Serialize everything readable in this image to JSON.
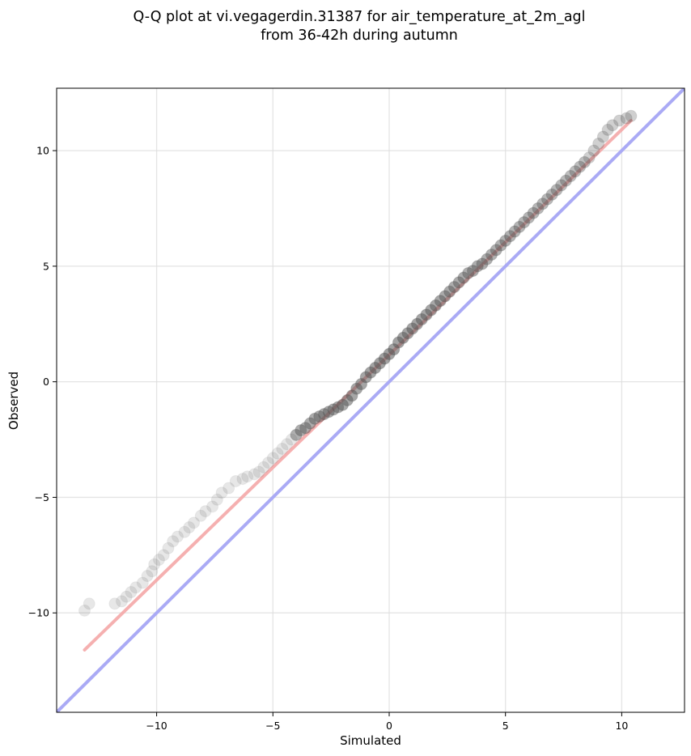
{
  "chart_data": {
    "type": "scatter",
    "title": "Q-Q plot at vi.vegagerdin.31387 for air_temperature_at_2m_agl",
    "subtitle": "from 36-42h during autumn",
    "xlabel": "Simulated",
    "ylabel": "Observed",
    "xlim": [
      -14.3,
      12.7
    ],
    "ylim": [
      -14.3,
      12.7
    ],
    "xticks": [
      -10,
      -5,
      0,
      5,
      10
    ],
    "yticks": [
      -10,
      -5,
      0,
      5,
      10
    ],
    "xtick_labels": [
      "−10",
      "−5",
      "0",
      "5",
      "10"
    ],
    "ytick_labels": [
      "−10",
      "−5",
      "0",
      "5",
      "10"
    ],
    "grid": true,
    "reference_line": {
      "x": [
        -14.3,
        12.7
      ],
      "y": [
        -14.3,
        12.7
      ],
      "color": "#aaaaf5"
    },
    "fit_line": {
      "x": [
        -13.1,
        10.4
      ],
      "y": [
        -11.6,
        11.3
      ],
      "color": "#f5a8a8"
    },
    "point_color": "#555555",
    "series": [
      {
        "x": [
          -13.1,
          -12.9,
          -11.8,
          -11.5,
          -11.3,
          -11.1,
          -10.9,
          -10.6,
          -10.4,
          -10.2,
          -10.1,
          -9.9,
          -9.7,
          -9.5,
          -9.3,
          -9.1,
          -8.8,
          -8.6,
          -8.4,
          -8.1,
          -7.9,
          -7.6,
          -7.4,
          -7.2,
          -6.9,
          -6.6,
          -6.3,
          -6.1,
          -5.8,
          -5.6,
          -5.4,
          -5.2,
          -5.0,
          -4.8,
          -4.6,
          -4.4,
          -4.2,
          -4.0,
          -3.8,
          -3.6,
          -3.4,
          -3.2,
          -3.0,
          -2.8,
          -2.6,
          -2.4,
          -2.2,
          -2.0,
          -1.8,
          -1.6,
          -1.4,
          -1.2,
          -1.0,
          -0.8,
          -0.6,
          -0.4,
          -0.2,
          0.0,
          0.2,
          0.4,
          0.6,
          0.8,
          1.0,
          1.2,
          1.4,
          1.6,
          1.8,
          2.0,
          2.2,
          2.4,
          2.6,
          2.8,
          3.0,
          3.2,
          3.4,
          3.6,
          3.8,
          4.0,
          4.2,
          4.4,
          4.6,
          4.8,
          5.0,
          5.2,
          5.4,
          5.6,
          5.8,
          6.0,
          6.2,
          6.4,
          6.6,
          6.8,
          7.0,
          7.2,
          7.4,
          7.6,
          7.8,
          8.0,
          8.2,
          8.4,
          8.6,
          8.8,
          9.0,
          9.2,
          9.4,
          9.6,
          9.9,
          10.2,
          10.4
        ],
        "y": [
          -9.9,
          -9.6,
          -9.6,
          -9.5,
          -9.3,
          -9.1,
          -8.9,
          -8.7,
          -8.4,
          -8.2,
          -7.9,
          -7.7,
          -7.5,
          -7.2,
          -6.9,
          -6.7,
          -6.5,
          -6.3,
          -6.1,
          -5.8,
          -5.6,
          -5.4,
          -5.1,
          -4.8,
          -4.6,
          -4.3,
          -4.2,
          -4.1,
          -4.0,
          -3.9,
          -3.7,
          -3.5,
          -3.3,
          -3.1,
          -2.9,
          -2.7,
          -2.5,
          -2.3,
          -2.1,
          -2.0,
          -1.8,
          -1.6,
          -1.5,
          -1.4,
          -1.3,
          -1.2,
          -1.1,
          -1.0,
          -0.8,
          -0.6,
          -0.3,
          -0.1,
          0.2,
          0.4,
          0.6,
          0.8,
          1.0,
          1.2,
          1.4,
          1.7,
          1.9,
          2.1,
          2.3,
          2.5,
          2.7,
          2.9,
          3.1,
          3.3,
          3.5,
          3.7,
          3.9,
          4.1,
          4.3,
          4.5,
          4.7,
          4.8,
          5.0,
          5.1,
          5.3,
          5.5,
          5.7,
          5.9,
          6.1,
          6.3,
          6.5,
          6.7,
          6.9,
          7.1,
          7.3,
          7.5,
          7.7,
          7.9,
          8.1,
          8.3,
          8.5,
          8.7,
          8.9,
          9.1,
          9.3,
          9.5,
          9.7,
          10.0,
          10.3,
          10.6,
          10.9,
          11.1,
          11.3,
          11.4,
          11.5
        ]
      }
    ]
  }
}
